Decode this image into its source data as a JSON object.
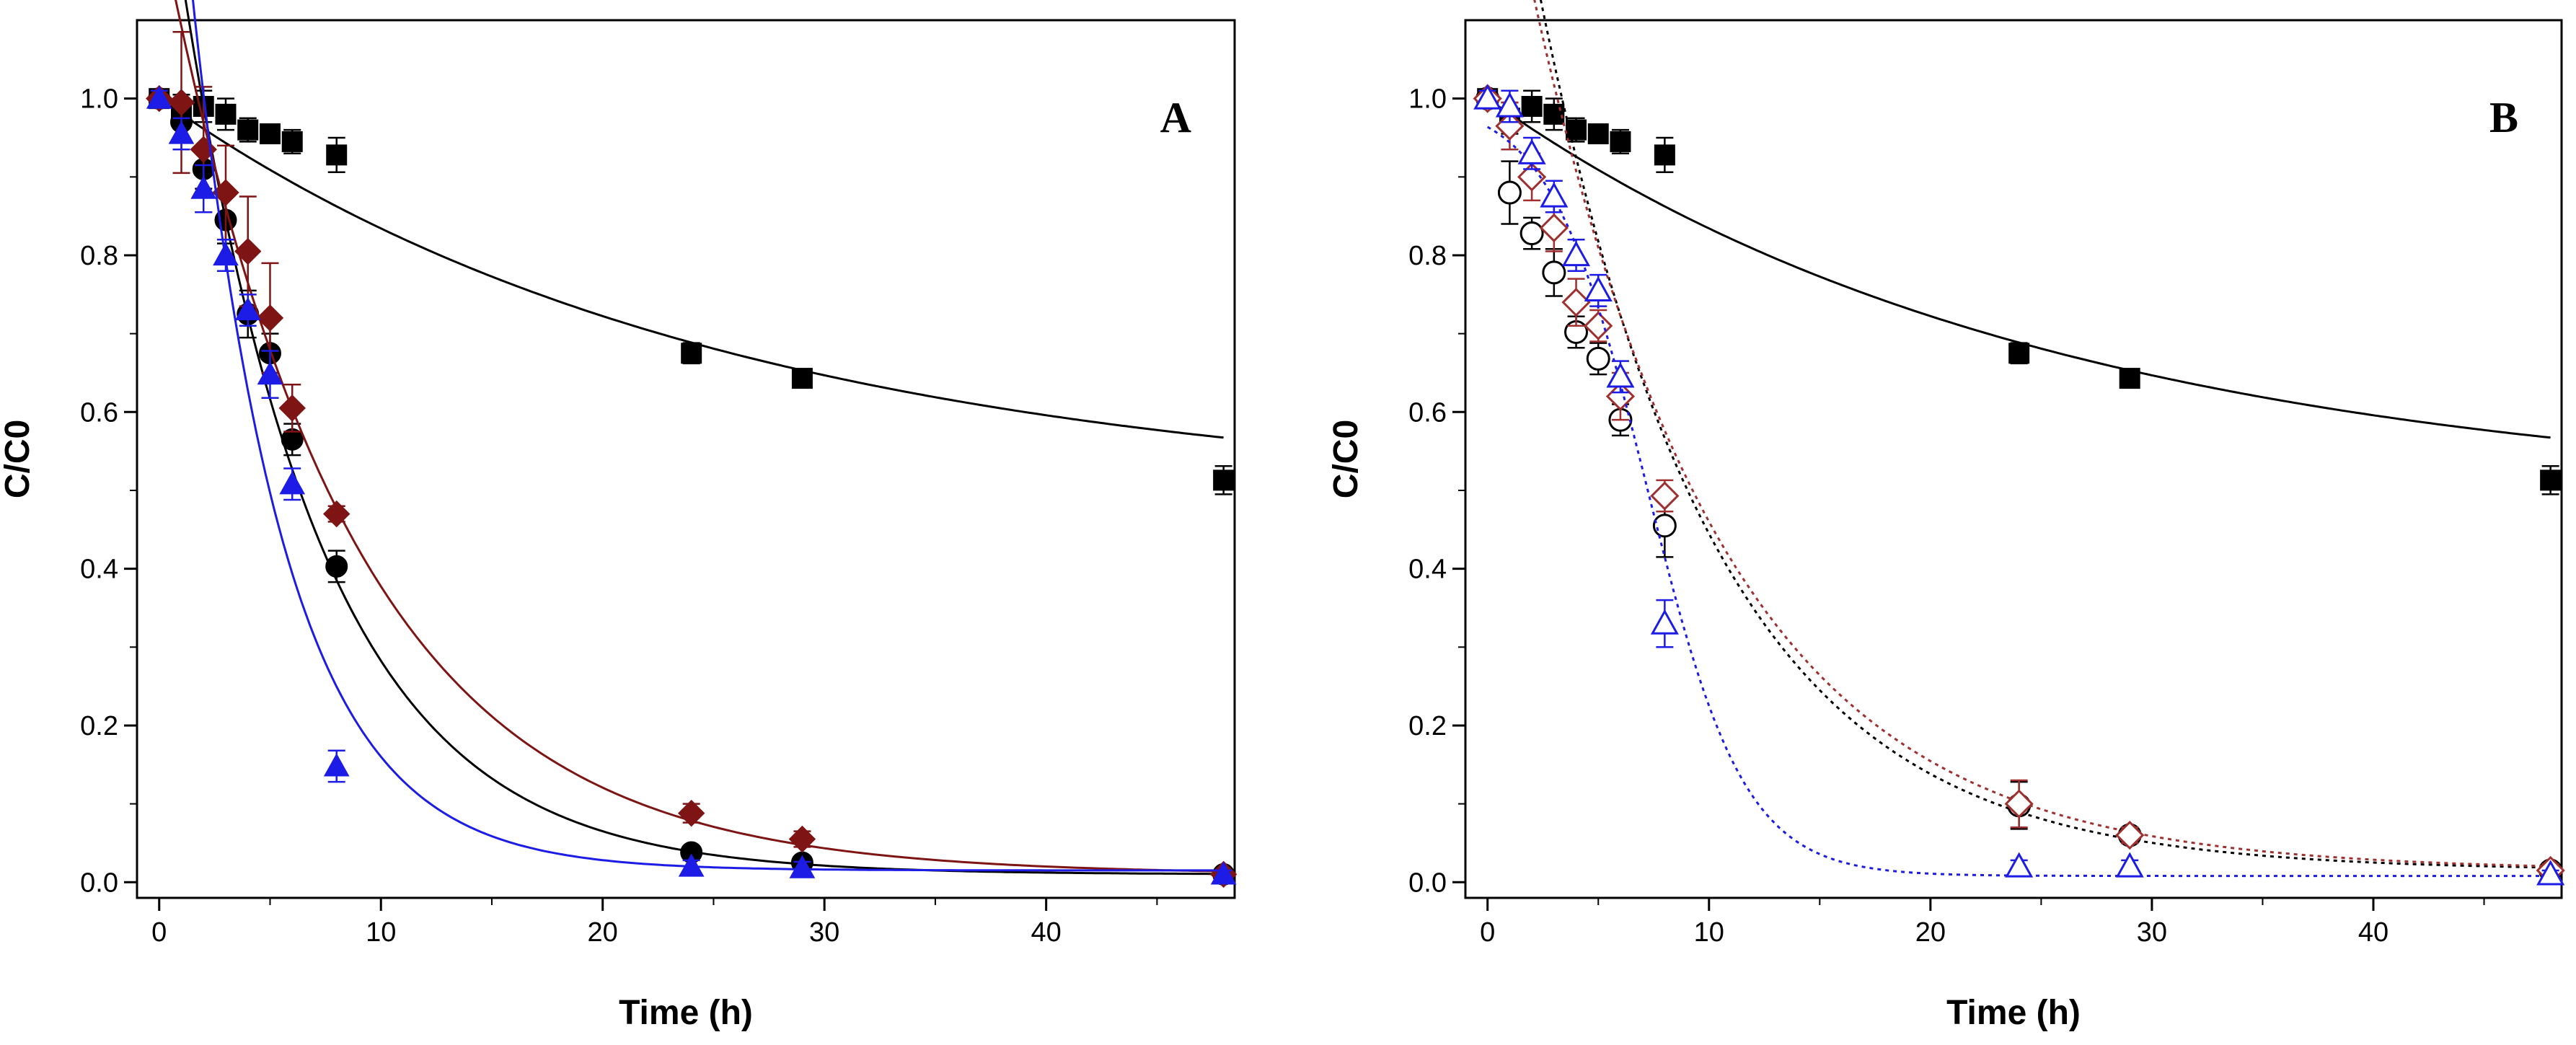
{
  "chart_data": [
    {
      "type": "scatter",
      "panel_label": "A",
      "xlabel": "Time (h)",
      "ylabel": "C/C0",
      "xlim": [
        -1,
        48.5
      ],
      "ylim": [
        -0.02,
        1.1
      ],
      "xticks": [
        "0",
        "10",
        "20",
        "30",
        "40"
      ],
      "xtick_values": [
        0,
        10,
        20,
        30,
        40
      ],
      "yticks": [
        "0.0",
        "0.2",
        "0.4",
        "0.6",
        "0.8",
        "1.0"
      ],
      "ytick_values": [
        0,
        0.2,
        0.4,
        0.6,
        0.8,
        1.0
      ],
      "series": [
        {
          "name": "black-square",
          "color": "#000000",
          "marker": "square",
          "filled": true,
          "x": [
            0,
            1,
            2,
            3,
            4,
            5,
            6,
            8,
            24,
            29,
            48
          ],
          "y": [
            1.0,
            0.985,
            0.99,
            0.98,
            0.96,
            0.955,
            0.945,
            0.928,
            0.675,
            0.643,
            0.513
          ],
          "err": [
            0.01,
            0.02,
            0.02,
            0.02,
            0.015,
            0.01,
            0.015,
            0.022,
            0.013,
            0.01,
            0.018
          ],
          "fit": {
            "type": "exp",
            "a": 0.49,
            "b": 0.51,
            "k": 0.0393,
            "dash": false
          }
        },
        {
          "name": "black-circle",
          "color": "#000000",
          "marker": "circle",
          "filled": true,
          "x": [
            0,
            1,
            2,
            3,
            4,
            5,
            6,
            8,
            24,
            29,
            48
          ],
          "y": [
            1.0,
            0.97,
            0.91,
            0.845,
            0.725,
            0.675,
            0.565,
            0.403,
            0.038,
            0.025,
            0.01
          ],
          "err": [
            0.01,
            0.02,
            0.025,
            0.03,
            0.03,
            0.025,
            0.02,
            0.02,
            0.008,
            0.008,
            0.008
          ],
          "fit": {
            "type": "exp",
            "a": 0.01,
            "b": 1.35,
            "k": 0.16,
            "dash": false
          }
        },
        {
          "name": "dark-red-diamond",
          "color": "#7f1414",
          "marker": "diamond",
          "filled": true,
          "x": [
            0,
            1,
            2,
            3,
            4,
            5,
            6,
            8,
            24,
            29,
            48
          ],
          "y": [
            1.0,
            0.995,
            0.935,
            0.88,
            0.805,
            0.72,
            0.605,
            0.47,
            0.088,
            0.055,
            0.01
          ],
          "err": [
            0.01,
            0.09,
            0.08,
            0.06,
            0.07,
            0.07,
            0.03,
            0.01,
            0.012,
            0.01,
            0.005
          ],
          "fit": {
            "type": "exp",
            "a": 0.01,
            "b": 1.22,
            "k": 0.12,
            "dash": false
          }
        },
        {
          "name": "blue-triangle",
          "color": "#1c1ce6",
          "marker": "triangle",
          "filled": true,
          "x": [
            0,
            1,
            2,
            3,
            4,
            5,
            6,
            8,
            24,
            29,
            48
          ],
          "y": [
            1.0,
            0.955,
            0.885,
            0.8,
            0.73,
            0.648,
            0.508,
            0.148,
            0.02,
            0.018,
            0.01
          ],
          "err": [
            0.01,
            0.02,
            0.03,
            0.02,
            0.02,
            0.03,
            0.02,
            0.02,
            0.008,
            0.008,
            0.005
          ],
          "fit": {
            "type": "exp",
            "a": 0.015,
            "b": 1.6,
            "k": 0.24,
            "dash": false
          }
        }
      ]
    },
    {
      "type": "scatter",
      "panel_label": "B",
      "xlabel": "Time (h)",
      "ylabel": "C/C0",
      "xlim": [
        -1,
        48.5
      ],
      "ylim": [
        -0.02,
        1.1
      ],
      "xticks": [
        "0",
        "10",
        "20",
        "30",
        "40"
      ],
      "xtick_values": [
        0,
        10,
        20,
        30,
        40
      ],
      "yticks": [
        "0.0",
        "0.2",
        "0.4",
        "0.6",
        "0.8",
        "1.0"
      ],
      "ytick_values": [
        0,
        0.2,
        0.4,
        0.6,
        0.8,
        1.0
      ],
      "series": [
        {
          "name": "black-square",
          "color": "#000000",
          "marker": "square",
          "filled": true,
          "x": [
            0,
            1,
            2,
            3,
            4,
            5,
            6,
            8,
            24,
            29,
            48
          ],
          "y": [
            1.0,
            0.975,
            0.99,
            0.98,
            0.96,
            0.955,
            0.945,
            0.928,
            0.675,
            0.643,
            0.513
          ],
          "err": [
            0.01,
            0.02,
            0.02,
            0.02,
            0.015,
            0.01,
            0.015,
            0.022,
            0.013,
            0.01,
            0.018
          ],
          "fit": {
            "type": "exp",
            "a": 0.49,
            "b": 0.51,
            "k": 0.0393,
            "dash": false
          }
        },
        {
          "name": "black-open-circle",
          "color": "#000000",
          "marker": "circle",
          "filled": false,
          "x": [
            0,
            1,
            2,
            3,
            4,
            5,
            6,
            8,
            24,
            29,
            48
          ],
          "y": [
            1.0,
            0.88,
            0.828,
            0.778,
            0.702,
            0.668,
            0.59,
            0.455,
            0.098,
            0.06,
            0.015
          ],
          "err": [
            0.01,
            0.04,
            0.02,
            0.03,
            0.02,
            0.02,
            0.02,
            0.04,
            0.03,
            0.01,
            0.008
          ],
          "fit": {
            "type": "exp",
            "a": 0.015,
            "b": 1.5,
            "k": 0.125,
            "dash": true
          }
        },
        {
          "name": "dark-red-open-diamond",
          "color": "#a03030",
          "marker": "diamond",
          "filled": false,
          "x": [
            0,
            1,
            2,
            3,
            4,
            5,
            6,
            8,
            24,
            29,
            48
          ],
          "y": [
            1.0,
            0.965,
            0.9,
            0.835,
            0.74,
            0.71,
            0.62,
            0.493,
            0.1,
            0.06,
            0.015
          ],
          "err": [
            0.01,
            0.03,
            0.03,
            0.03,
            0.03,
            0.02,
            0.03,
            0.02,
            0.03,
            0.01,
            0.008
          ],
          "fit": {
            "type": "exp",
            "a": 0.015,
            "b": 1.42,
            "k": 0.116,
            "dash": true
          }
        },
        {
          "name": "blue-open-triangle",
          "color": "#1c1ce6",
          "marker": "triangle",
          "filled": false,
          "x": [
            0,
            1,
            2,
            3,
            4,
            5,
            6,
            8,
            24,
            29,
            48
          ],
          "y": [
            1.0,
            0.99,
            0.93,
            0.875,
            0.8,
            0.755,
            0.645,
            0.33,
            0.02,
            0.02,
            0.01
          ],
          "err": [
            0.01,
            0.02,
            0.02,
            0.02,
            0.02,
            0.02,
            0.02,
            0.03,
            0.008,
            0.008,
            0.005
          ],
          "fit": {
            "type": "sigmoid",
            "a": 0.008,
            "x0": 7.2,
            "s": 2.2,
            "dash": true
          }
        }
      ]
    }
  ]
}
